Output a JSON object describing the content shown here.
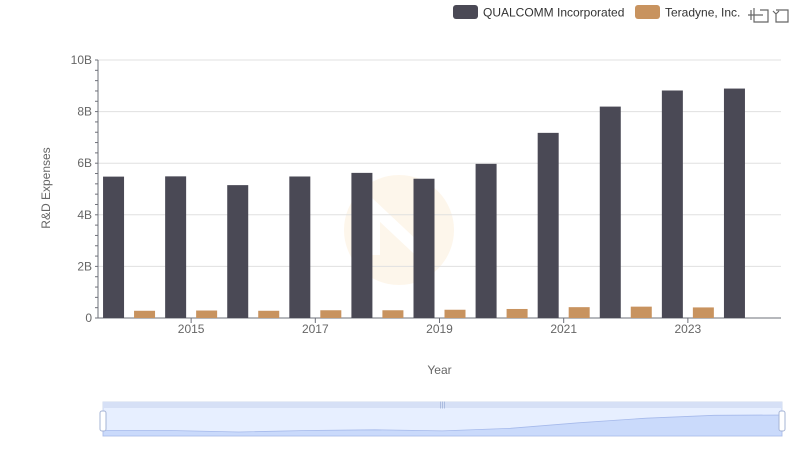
{
  "chart_data": {
    "type": "bar",
    "title": "",
    "xlabel": "Year",
    "ylabel": "R&D Expenses",
    "x": [
      2014,
      2015,
      2016,
      2017,
      2018,
      2019,
      2020,
      2021,
      2022,
      2023,
      2024
    ],
    "x_tick_labels": [
      "2015",
      "2017",
      "2019",
      "2021",
      "2023"
    ],
    "y_tick_labels": [
      "0",
      "2B",
      "4B",
      "6B",
      "8B",
      "10B"
    ],
    "ylim": [
      0,
      10000000000
    ],
    "grid": true,
    "legend_position": "top-right",
    "series": [
      {
        "name": "QUALCOMM Incorporated",
        "color": "#4a4955",
        "values": [
          5480000000,
          5490000000,
          5150000000,
          5485000000,
          5625000000,
          5398000000,
          5975000000,
          7176000000,
          8194000000,
          8818000000,
          8893000000
        ]
      },
      {
        "name": "Teradyne, Inc.",
        "color": "#c8935f",
        "values": [
          280000000,
          290000000,
          280000000,
          300000000,
          300000000,
          320000000,
          350000000,
          420000000,
          440000000,
          410000000,
          null
        ]
      }
    ]
  },
  "toolbar": {
    "zoom_icon": "zoom-select-icon",
    "restore_icon": "restore-icon"
  },
  "data_zoom": {
    "range_start_pct": 0,
    "range_end_pct": 100,
    "handle_color": "#d2dbee",
    "fill_color": "#dbe5fb"
  }
}
